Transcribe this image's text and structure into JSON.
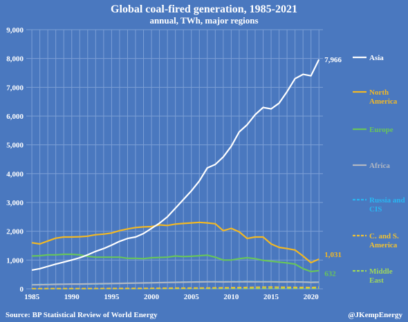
{
  "colors": {
    "background": "#4a78bf",
    "grid": "#7c9fd6",
    "Asia": "#ffffff",
    "North America": "#f2b824",
    "Europe": "#68c55a",
    "Africa": "#b3b8c2",
    "Russia and CIS": "#29b6f2",
    "C. and S. America": "#f2c230",
    "Middle East": "#9fd85a"
  },
  "chart_data": {
    "type": "line",
    "title": "Global coal-fired generation, 1985-2021",
    "subtitle": "annual, TWh, major regions",
    "source": "Source: BP Statistical Review of World Energy",
    "credit": "@JKempEnergy",
    "xlim": [
      1984.3,
      2021.5
    ],
    "ylim": [
      0,
      9000
    ],
    "yticks": [
      "0",
      "1,000",
      "2,000",
      "3,000",
      "4,000",
      "5,000",
      "6,000",
      "7,000",
      "8,000",
      "9,000"
    ],
    "xticks": [
      "1985",
      "1990",
      "1995",
      "2000",
      "2005",
      "2010",
      "2015",
      "2020"
    ],
    "grid": true,
    "legend_position": "right",
    "x": [
      1985,
      1986,
      1987,
      1988,
      1989,
      1990,
      1991,
      1992,
      1993,
      1994,
      1995,
      1996,
      1997,
      1998,
      1999,
      2000,
      2001,
      2002,
      2003,
      2004,
      2005,
      2006,
      2007,
      2008,
      2009,
      2010,
      2011,
      2012,
      2013,
      2014,
      2015,
      2016,
      2017,
      2018,
      2019,
      2020,
      2021
    ],
    "series": [
      {
        "name": "Asia",
        "dash": "solid",
        "label_lines": [
          "Asia"
        ],
        "end_label": "7,966",
        "values": [
          650,
          700,
          780,
          860,
          930,
          1000,
          1080,
          1180,
          1300,
          1400,
          1520,
          1650,
          1750,
          1800,
          1920,
          2100,
          2280,
          2500,
          2800,
          3100,
          3400,
          3750,
          4200,
          4320,
          4580,
          4950,
          5450,
          5700,
          6050,
          6300,
          6250,
          6450,
          6850,
          7300,
          7450,
          7400,
          7966
        ]
      },
      {
        "name": "North America",
        "dash": "solid",
        "label_lines": [
          "North",
          "America"
        ],
        "end_label": "1,031",
        "values": [
          1600,
          1560,
          1660,
          1760,
          1800,
          1800,
          1810,
          1830,
          1880,
          1900,
          1940,
          2020,
          2080,
          2130,
          2150,
          2160,
          2220,
          2200,
          2250,
          2270,
          2290,
          2310,
          2290,
          2260,
          2020,
          2100,
          1980,
          1750,
          1800,
          1800,
          1560,
          1440,
          1400,
          1350,
          1140,
          910,
          1031
        ]
      },
      {
        "name": "Europe",
        "dash": "solid",
        "label_lines": [
          "Europe"
        ],
        "end_label": "632",
        "values": [
          1140,
          1150,
          1180,
          1180,
          1200,
          1200,
          1180,
          1130,
          1100,
          1100,
          1100,
          1100,
          1060,
          1060,
          1050,
          1080,
          1090,
          1100,
          1140,
          1120,
          1130,
          1150,
          1170,
          1100,
          1000,
          1000,
          1050,
          1080,
          1050,
          990,
          960,
          930,
          900,
          860,
          700,
          600,
          632
        ]
      },
      {
        "name": "Africa",
        "dash": "solid",
        "label_lines": [
          "Africa"
        ],
        "values": [
          140,
          145,
          150,
          155,
          160,
          165,
          165,
          170,
          175,
          180,
          185,
          190,
          195,
          200,
          205,
          210,
          215,
          220,
          225,
          230,
          235,
          240,
          245,
          245,
          240,
          245,
          245,
          250,
          245,
          245,
          245,
          240,
          240,
          240,
          235,
          225,
          230
        ]
      },
      {
        "name": "Russia and CIS",
        "dash": "6,3",
        "label_lines": [
          "Russia and",
          "CIS"
        ],
        "values": [
          150,
          155,
          160,
          165,
          165,
          165,
          160,
          160,
          160,
          165,
          175,
          190,
          200,
          195,
          210,
          215,
          220,
          225,
          235,
          240,
          245,
          250,
          250,
          255,
          250,
          255,
          260,
          265,
          260,
          255,
          250,
          250,
          245,
          245,
          245,
          235,
          240
        ]
      },
      {
        "name": "C. and S. America",
        "dash": "6,3",
        "label_lines": [
          "C. and S.",
          "America"
        ],
        "values": [
          10,
          10,
          11,
          12,
          12,
          13,
          13,
          14,
          15,
          15,
          16,
          17,
          18,
          19,
          20,
          22,
          24,
          26,
          28,
          30,
          32,
          33,
          34,
          38,
          40,
          44,
          48,
          52,
          58,
          62,
          64,
          60,
          58,
          56,
          54,
          50,
          60
        ]
      },
      {
        "name": "Middle East",
        "dash": "6,3",
        "label_lines": [
          "Middle",
          "East"
        ],
        "values": [
          5,
          5,
          5,
          5,
          6,
          6,
          6,
          6,
          7,
          7,
          7,
          8,
          8,
          8,
          9,
          9,
          9,
          10,
          10,
          10,
          11,
          11,
          11,
          12,
          12,
          12,
          13,
          13,
          13,
          14,
          14,
          14,
          15,
          15,
          15,
          16,
          16
        ]
      }
    ]
  }
}
